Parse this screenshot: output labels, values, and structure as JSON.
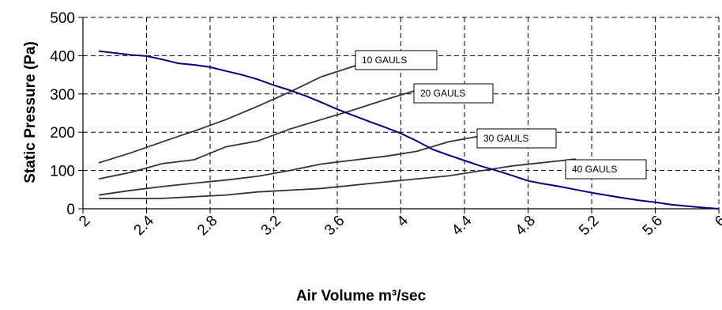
{
  "chart_data": {
    "type": "line",
    "xlabel": "Air Volume m³/sec",
    "ylabel": "Static Pressure (Pa)",
    "xlim": [
      2,
      6
    ],
    "ylim": [
      0,
      500
    ],
    "x_ticks": [
      2,
      2.4,
      2.8,
      3.2,
      3.6,
      4,
      4.4,
      4.8,
      5.2,
      5.6,
      6
    ],
    "y_ticks": [
      0,
      100,
      200,
      300,
      400,
      500
    ],
    "grid": true,
    "legend": "none",
    "fan_curve": {
      "color": "#000080",
      "x": [
        2.1,
        2.2,
        2.3,
        2.4,
        2.5,
        2.6,
        2.7,
        2.8,
        2.9,
        3.0,
        3.1,
        3.2,
        3.3,
        3.4,
        3.5,
        3.6,
        3.7,
        3.8,
        3.9,
        4.0,
        4.1,
        4.2,
        4.3,
        4.4,
        4.5,
        4.6,
        4.7,
        4.8,
        4.9,
        5.0,
        5.1,
        5.2,
        5.3,
        5.4,
        5.5,
        5.6,
        5.7,
        5.8,
        5.9,
        6.0
      ],
      "y": [
        412,
        407,
        402,
        399,
        390,
        380,
        376,
        370,
        360,
        350,
        338,
        323,
        310,
        295,
        278,
        260,
        244,
        228,
        213,
        197,
        177,
        155,
        140,
        126,
        112,
        100,
        87,
        73,
        65,
        58,
        50,
        42,
        35,
        28,
        22,
        17,
        11,
        7,
        3,
        0
      ]
    },
    "series": [
      {
        "name": "10 GAULS",
        "color": "#333333",
        "x": [
          2.1,
          2.3,
          2.5,
          2.7,
          2.9,
          3.1,
          3.3,
          3.5,
          3.7,
          3.82
        ],
        "y": [
          120,
          146,
          175,
          203,
          233,
          268,
          305,
          345,
          372,
          392
        ]
      },
      {
        "name": "20 GAULS",
        "color": "#333333",
        "x": [
          2.1,
          2.3,
          2.5,
          2.7,
          2.9,
          3.1,
          3.3,
          3.5,
          3.7,
          3.9,
          4.1,
          4.25
        ],
        "y": [
          78,
          95,
          118,
          128,
          162,
          177,
          208,
          233,
          258,
          285,
          310,
          320
        ]
      },
      {
        "name": "30 GAULS",
        "color": "#333333",
        "x": [
          2.1,
          2.3,
          2.5,
          2.7,
          2.9,
          3.1,
          3.3,
          3.5,
          3.7,
          3.9,
          4.1,
          4.3,
          4.5
        ],
        "y": [
          36,
          48,
          58,
          67,
          75,
          85,
          100,
          117,
          127,
          137,
          150,
          175,
          190
        ]
      },
      {
        "name": "40 GAULS",
        "color": "#333333",
        "x": [
          2.1,
          2.5,
          2.9,
          3.1,
          3.5,
          3.9,
          4.3,
          4.7,
          5.1
        ],
        "y": [
          27,
          27,
          36,
          44,
          53,
          70,
          86,
          112,
          130
        ]
      }
    ]
  }
}
